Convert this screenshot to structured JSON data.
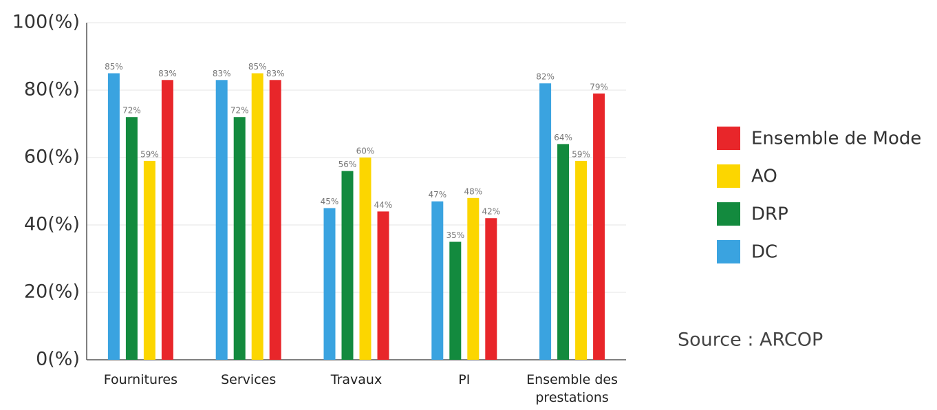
{
  "chart_data": {
    "type": "bar",
    "categories": [
      "Fournitures",
      "Services",
      "Travaux",
      "PI",
      "Ensemble des prestations"
    ],
    "series": [
      {
        "name": "DC",
        "color": "#3aa3e0",
        "values": [
          85,
          83,
          45,
          47,
          82
        ],
        "value_labels": [
          "85%",
          "83%",
          "45%",
          "47%",
          "82%"
        ]
      },
      {
        "name": "DRP",
        "color": "#138a3e",
        "values": [
          72,
          72,
          56,
          35,
          64
        ],
        "value_labels": [
          "72%",
          "72%",
          "56%",
          "35%",
          "64%"
        ]
      },
      {
        "name": "AO",
        "color": "#fcd600",
        "values": [
          59,
          85,
          60,
          48,
          59
        ],
        "value_labels": [
          "59%",
          "85%",
          "60%",
          "48%",
          "59%"
        ]
      },
      {
        "name": "Ensemble de Mode",
        "color": "#e8262a",
        "values": [
          83,
          83,
          44,
          42,
          79
        ],
        "value_labels": [
          "83%",
          "83%",
          "44%",
          "42%",
          "79%"
        ]
      }
    ],
    "ylim": [
      0,
      100
    ],
    "yticks": [
      {
        "value": 0,
        "label": "0(%)"
      },
      {
        "value": 20,
        "label": "20(%)"
      },
      {
        "value": 40,
        "label": "40(%)"
      },
      {
        "value": 60,
        "label": "60(%)"
      },
      {
        "value": 80,
        "label": "80(%)"
      },
      {
        "value": 100,
        "label": "100(%)"
      }
    ],
    "grid": true,
    "legend": "right",
    "source": "Source : ARCOP"
  }
}
